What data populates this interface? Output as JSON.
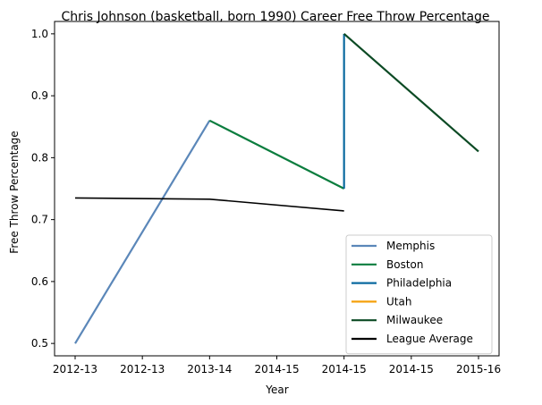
{
  "chart_data": {
    "type": "line",
    "title": "Chris Johnson (basketball, born 1990) Career Free Throw Percentage",
    "xlabel": "Year",
    "ylabel": "Free Throw Percentage",
    "x_tick_labels": [
      "2012-13",
      "2012-13",
      "2013-14",
      "2014-15",
      "2014-15",
      "2014-15",
      "2015-16"
    ],
    "ylim": [
      0.48,
      1.02
    ],
    "y_ticks": [
      0.5,
      0.6,
      0.7,
      0.8,
      0.9,
      1.0
    ],
    "y_tick_labels": [
      "0.5",
      "0.6",
      "0.7",
      "0.8",
      "0.9",
      "1.0"
    ],
    "grid": false,
    "legend_position": "lower-right",
    "series": [
      {
        "name": "Memphis",
        "color": "#5b87b9",
        "x": [
          0,
          2
        ],
        "values": [
          0.5,
          0.86
        ]
      },
      {
        "name": "Boston",
        "color": "#0b7d3e",
        "x": [
          2,
          4
        ],
        "values": [
          0.86,
          0.75
        ]
      },
      {
        "name": "Philadelphia",
        "color": "#0b6aa0",
        "x": [
          4,
          4
        ],
        "values": [
          0.75,
          1.0
        ]
      },
      {
        "name": "Utah",
        "color": "#f5a00c",
        "x": [],
        "values": []
      },
      {
        "name": "Milwaukee",
        "color": "#0c4a24",
        "x": [
          4,
          6
        ],
        "values": [
          1.0,
          0.81
        ]
      },
      {
        "name": "League Average",
        "color": "#000000",
        "x": [
          0,
          2,
          4
        ],
        "values": [
          0.735,
          0.733,
          0.714
        ]
      }
    ]
  }
}
